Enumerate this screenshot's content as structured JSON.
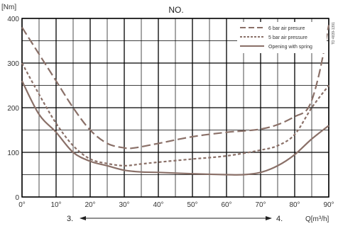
{
  "chart_data": {
    "type": "line",
    "title": "NO.",
    "y_unit_label": "[Nm]",
    "x_unit_label": "Q[m³/h]",
    "x_ticks": [
      "0°",
      "10°",
      "20°",
      "30°",
      "40°",
      "50°",
      "60°",
      "70°",
      "80°",
      "90°"
    ],
    "y_ticks": [
      "0",
      "100",
      "200",
      "300",
      "400"
    ],
    "xlim": [
      0,
      90
    ],
    "ylim": [
      0,
      400
    ],
    "grid": true,
    "legend_position": "top-right",
    "side_code": "TD 4839-1391",
    "bottom_annotation": {
      "left_label": "3.",
      "right_label": "4.",
      "arrow": "double-headed"
    },
    "colors": {
      "curve": "#8a7068",
      "grid": "#000000",
      "axis_text": "#333333"
    },
    "series": [
      {
        "name": "6 bar air presure",
        "dash": "long-dash",
        "x": [
          0,
          5,
          10,
          15,
          20,
          25,
          30,
          33,
          40,
          50,
          60,
          65,
          70,
          75,
          80,
          84,
          87,
          90
        ],
        "y": [
          380,
          320,
          260,
          200,
          150,
          120,
          110,
          110,
          120,
          135,
          145,
          148,
          152,
          162,
          180,
          200,
          270,
          385
        ]
      },
      {
        "name": "5 bar air pressure",
        "dash": "short-dash",
        "x": [
          0,
          5,
          10,
          15,
          20,
          25,
          30,
          35,
          40,
          50,
          60,
          70,
          75,
          80,
          85,
          90
        ],
        "y": [
          300,
          230,
          165,
          115,
          85,
          75,
          70,
          74,
          78,
          85,
          92,
          105,
          115,
          140,
          200,
          250
        ]
      },
      {
        "name": "Opening with spring",
        "dash": "solid",
        "x": [
          0,
          5,
          10,
          15,
          20,
          25,
          30,
          35,
          40,
          50,
          60,
          65,
          70,
          75,
          80,
          85,
          90
        ],
        "y": [
          260,
          185,
          145,
          100,
          80,
          70,
          60,
          56,
          55,
          52,
          50,
          50,
          55,
          70,
          95,
          130,
          160
        ]
      }
    ]
  }
}
